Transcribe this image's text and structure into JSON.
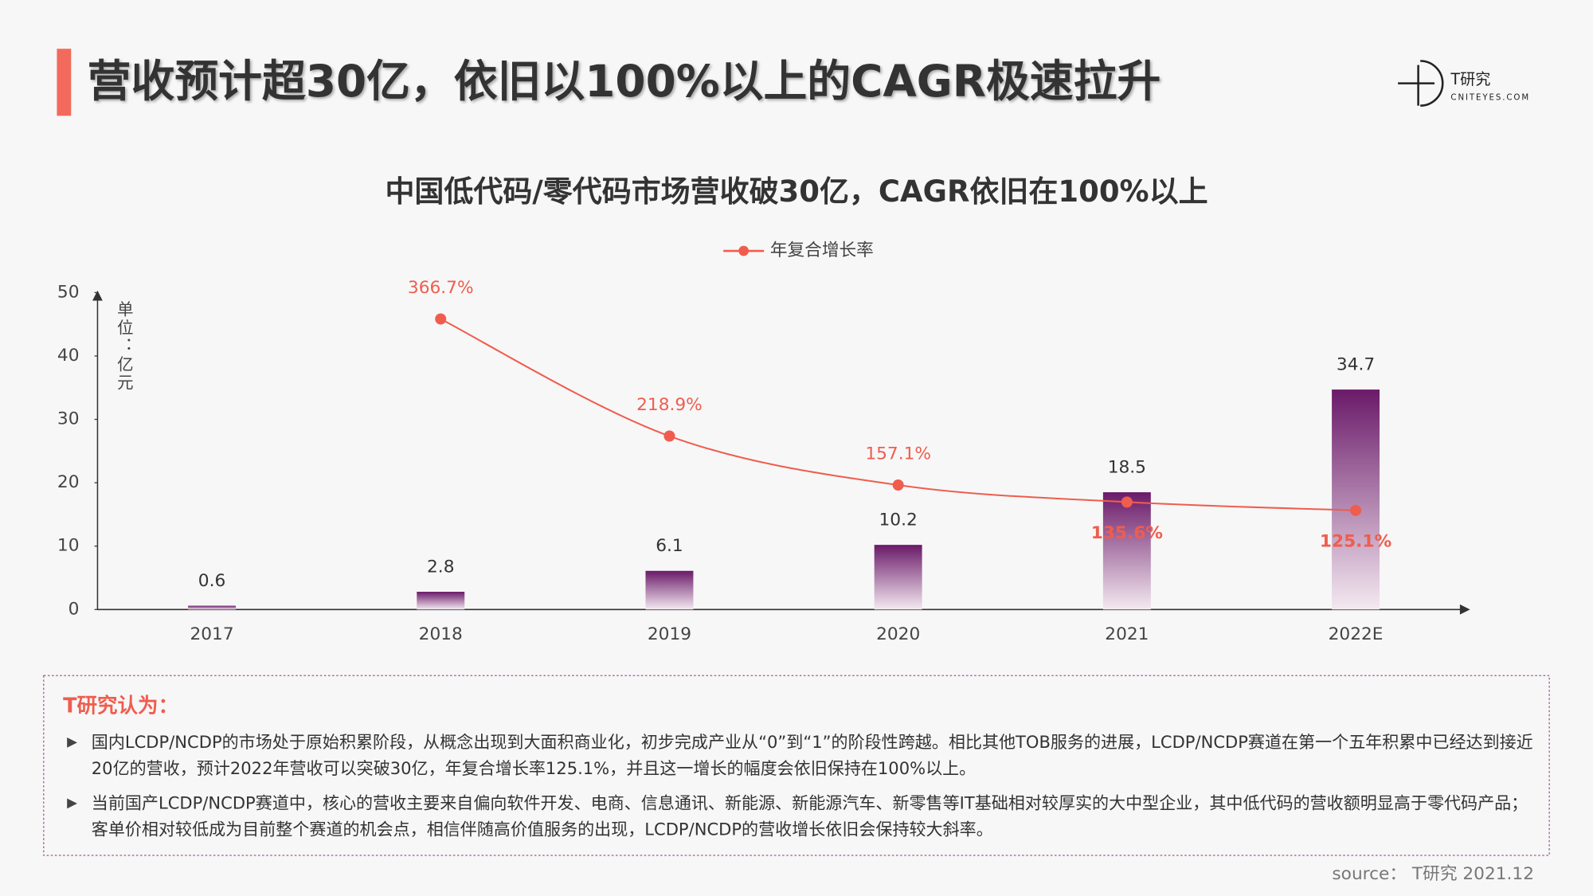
{
  "header": {
    "title": "营收预计超30亿，依旧以100%以上的CAGR极速拉升",
    "logo": "T研究",
    "logo_sub": "CNITEYES.COM"
  },
  "chart_data": {
    "type": "bar",
    "title": "中国低代码/零代码市场营收破30亿，CAGR依旧在100%以上",
    "y_label": "单位：亿元",
    "categories": [
      "2017",
      "2018",
      "2019",
      "2020",
      "2021",
      "2022E"
    ],
    "values": [
      0.6,
      2.8,
      6.1,
      10.2,
      18.5,
      34.7
    ],
    "color": "#6e1f6e",
    "series": [
      {
        "name": "年复合增长率",
        "color": "#ef5d4e",
        "axis": "y2",
        "values": [
          null,
          366.7,
          218.9,
          157.1,
          135.6,
          125.1
        ],
        "value_labels": [
          null,
          "366.7%",
          "218.9%",
          "157.1%",
          "135.6%",
          "125.1%"
        ]
      }
    ],
    "ylim": [
      0,
      50
    ],
    "yticks": [
      0,
      10,
      20,
      30,
      40,
      50
    ],
    "y2lim": [
      0,
      400
    ],
    "legend": "top"
  },
  "notes": {
    "heading": "T研究认为：",
    "bullets": [
      "国内LCDP/NCDP的市场处于原始积累阶段，从概念出现到大面积商业化，初步完成产业从“0”到“1”的阶段性跨越。相比其他TOB服务的进展，LCDP/NCDP赛道在第一个五年积累中已经达到接近20亿的营收，预计2022年营收可以突破30亿，年复合增长率125.1%，并且这一增长的幅度会依旧保持在100%以上。",
      "当前国产LCDP/NCDP赛道中，核心的营收主要来自偏向软件开发、电商、信息通讯、新能源、新能源汽车、新零售等IT基础相对较厚实的大中型企业，其中低代码的营收额明显高于零代码产品；客单价相对较低成为目前整个赛道的机会点，相信伴随高价值服务的出现，LCDP/NCDP的营收增长依旧会保持较大斜率。"
    ]
  },
  "source": "source： T研究 2021.12"
}
